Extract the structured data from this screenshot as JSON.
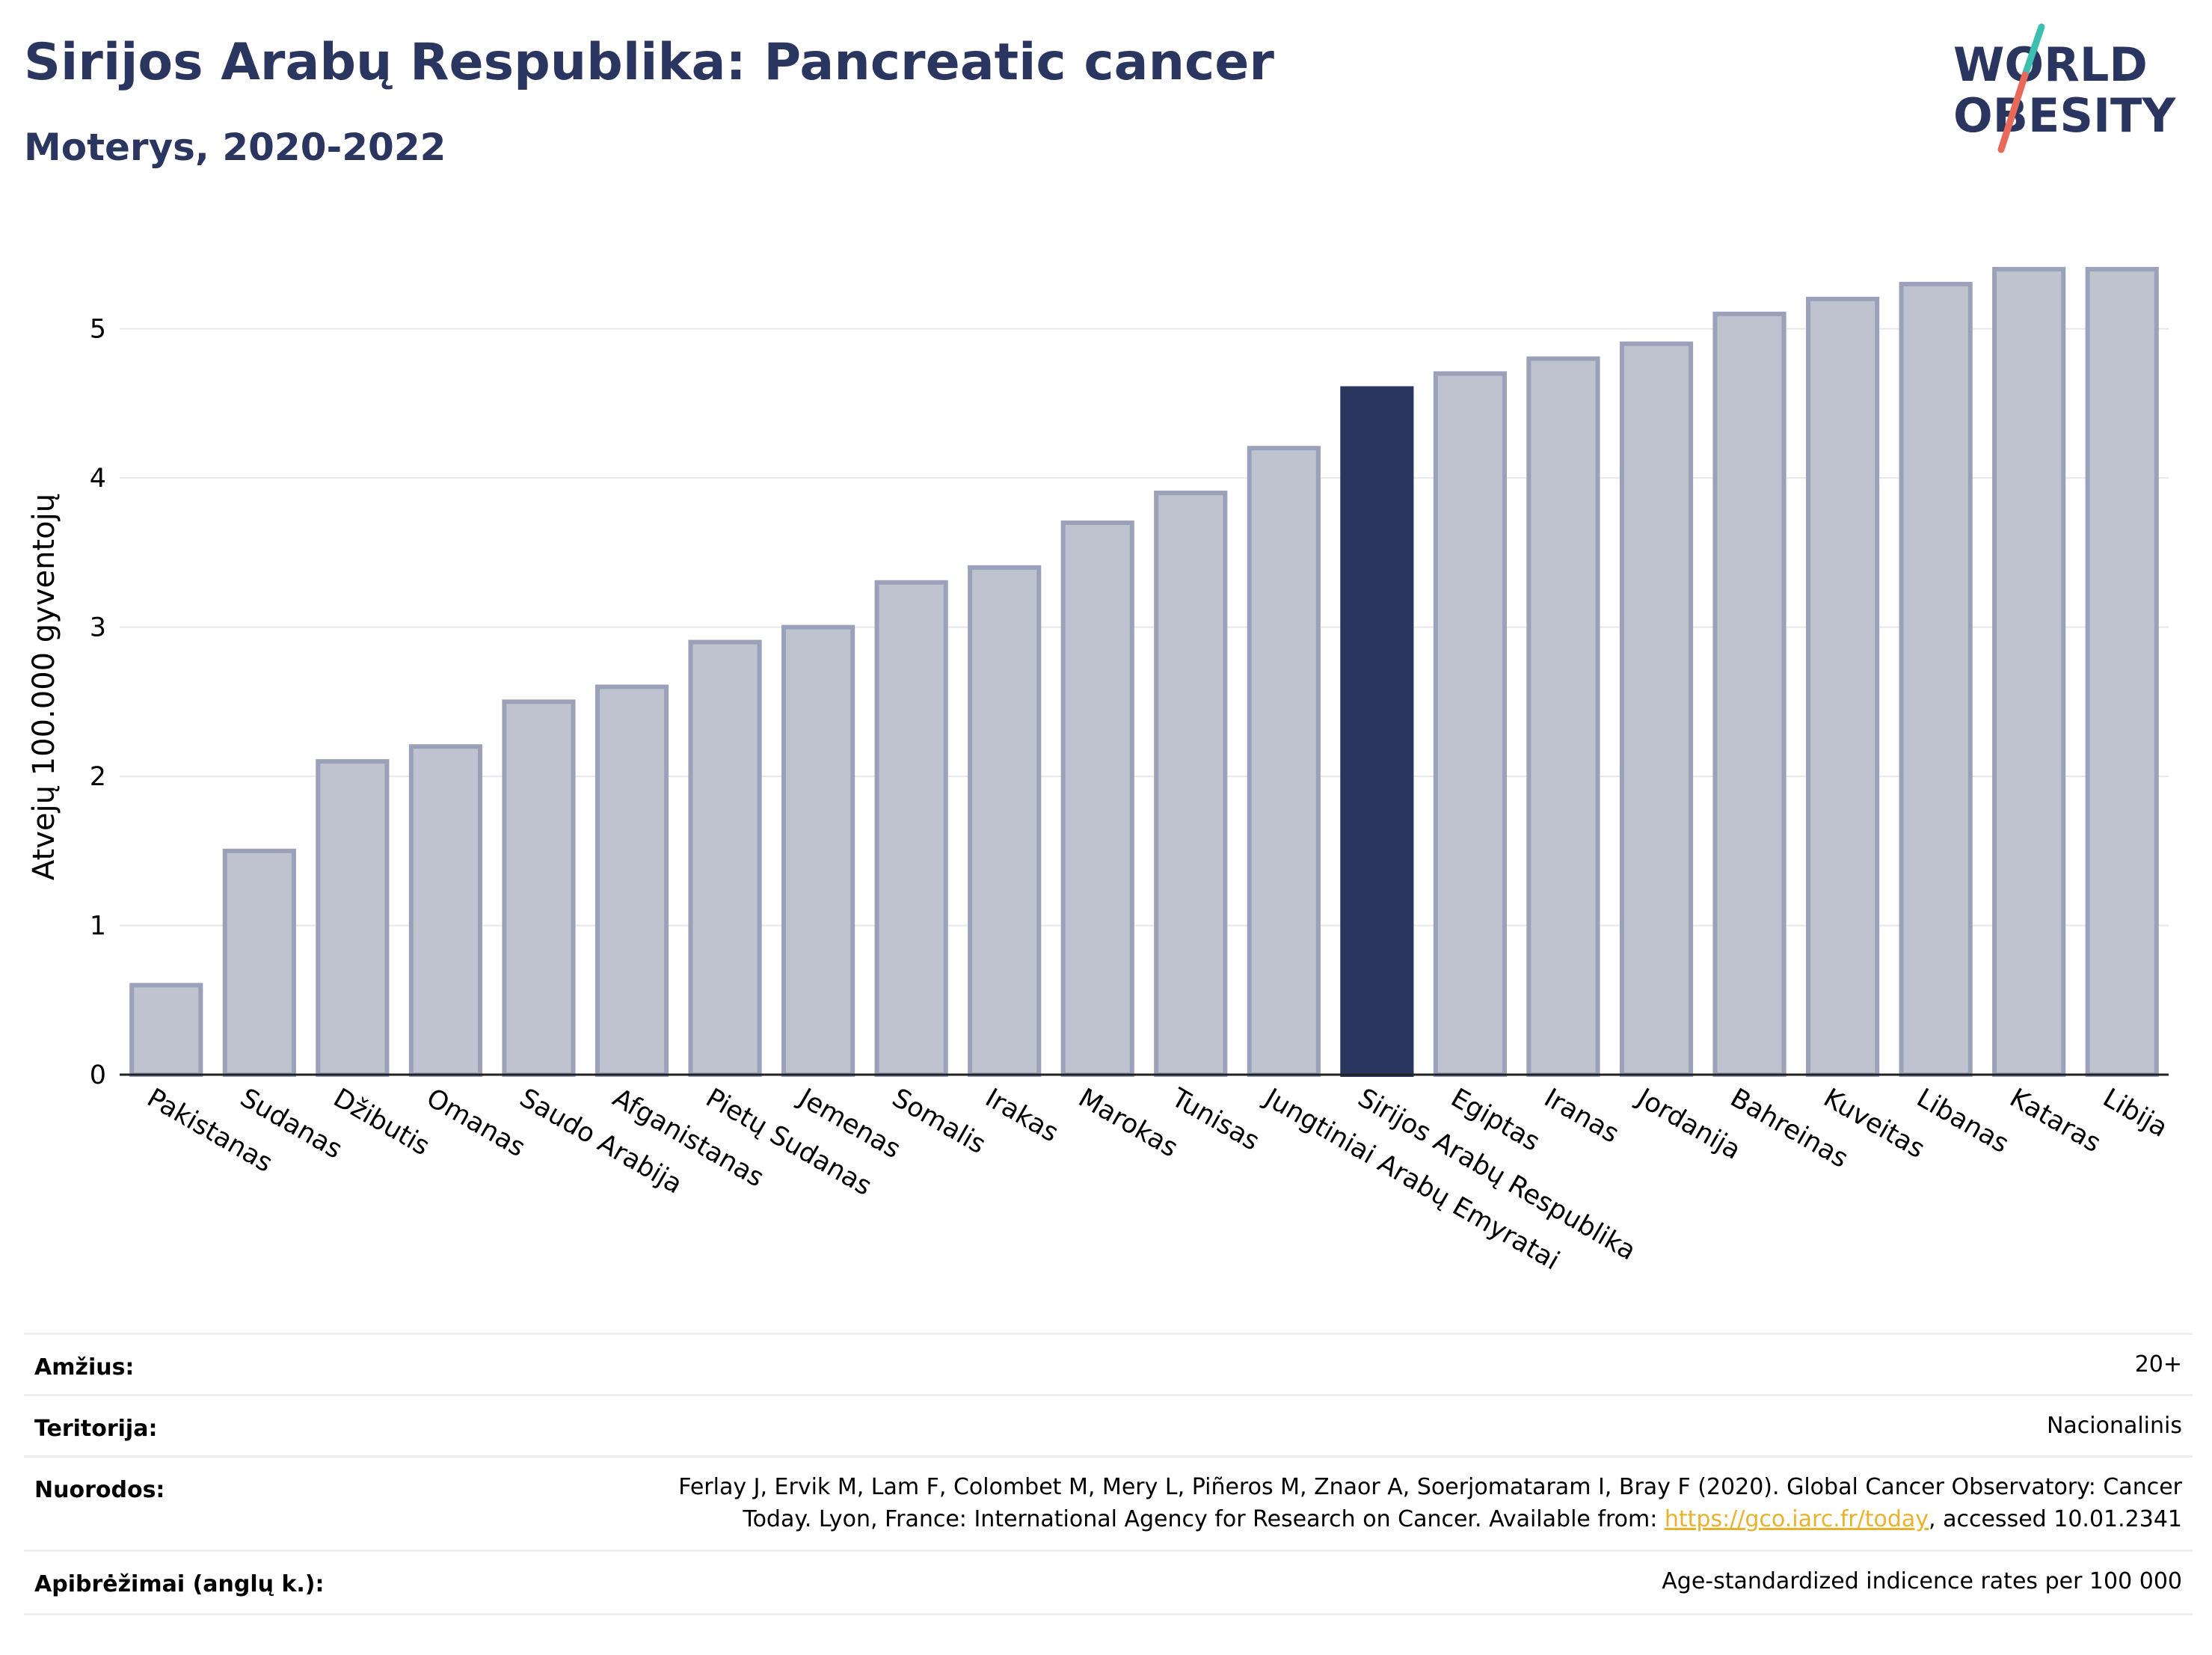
{
  "header": {
    "title": "Sirijos Arabų Respublika: Pancreatic cancer",
    "subtitle": "Moterys, 2020-2022"
  },
  "logo": {
    "line1": "WORLD",
    "line2": "OBESITY",
    "accent_colors": [
      "#3cbfb1",
      "#e8685a"
    ]
  },
  "chart_data": {
    "type": "bar",
    "ylabel": "Atvejų 100.000 gyventojų",
    "ylim": [
      0,
      5.6
    ],
    "yticks": [
      0,
      1,
      2,
      3,
      4,
      5
    ],
    "grid": true,
    "highlight": "Sirijos Arabų Respublika",
    "colors": {
      "bar": "#bfc3d0",
      "bar_border": "#9aa1b8",
      "highlight": "#2a3560"
    },
    "categories": [
      "Pakistanas",
      "Sudanas",
      "Džibutis",
      "Omanas",
      "Saudo Arabija",
      "Afganistanas",
      "Pietų Sudanas",
      "Jemenas",
      "Somalis",
      "Irakas",
      "Marokas",
      "Tunisas",
      "Jungtiniai Arabų Emyratai",
      "Sirijos Arabų Respublika",
      "Egiptas",
      "Iranas",
      "Jordanija",
      "Bahreinas",
      "Kuveitas",
      "Libanas",
      "Kataras",
      "Libija"
    ],
    "values": [
      0.6,
      1.5,
      2.1,
      2.2,
      2.5,
      2.6,
      2.9,
      3.0,
      3.3,
      3.4,
      3.7,
      3.9,
      4.2,
      4.6,
      4.7,
      4.8,
      4.9,
      5.1,
      5.2,
      5.3,
      5.4,
      5.4
    ]
  },
  "meta": {
    "age_label": "Amžius:",
    "age_value": "20+",
    "territory_label": "Teritorija:",
    "territory_value": "Nacionalinis",
    "refs_label": "Nuorodos:",
    "refs_line1": "Ferlay J, Ervik M, Lam F, Colombet M, Mery L, Piñeros M, Znaor A, Soerjomataram I, Bray F (2020). Global Cancer Observatory: Cancer",
    "refs_line2_pre": "Today. Lyon, France: International Agency for Research on Cancer. Available from: ",
    "refs_link": "https://gco.iarc.fr/today",
    "refs_line2_post": ", accessed 10.01.2341",
    "defs_label": "Apibrėžimai (anglų k.):",
    "defs_value": "Age-standardized indicence rates per 100 000"
  }
}
